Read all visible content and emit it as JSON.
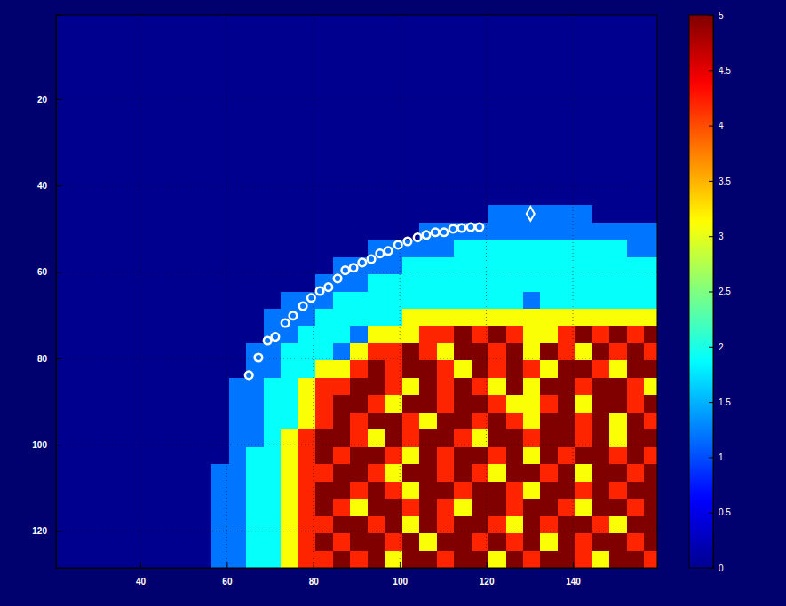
{
  "chart_data": {
    "type": "heatmap",
    "xlim": [
      20.5,
      159.5
    ],
    "ylim": [
      0.5,
      128.5
    ],
    "xticks": [
      40,
      60,
      80,
      100,
      120,
      140
    ],
    "yticks": [
      20,
      40,
      60,
      80,
      100,
      120
    ],
    "grid": true,
    "color_range": [
      0,
      5
    ],
    "color_ticks": [
      0,
      0.5,
      1,
      1.5,
      2,
      2.5,
      3,
      3.5,
      4,
      4.5,
      5
    ],
    "x": [
      22.5,
      26.5,
      30.5,
      34.5,
      38.5,
      42.5,
      46.5,
      50.5,
      54.5,
      58.5,
      62.5,
      66.5,
      70.5,
      74.5,
      78.5,
      82.5,
      86.5,
      90.5,
      94.5,
      98.5,
      102.5,
      106.5,
      110.5,
      114.5,
      118.5,
      122.5,
      126.5,
      130.5,
      134.5,
      138.5,
      142.5,
      146.5,
      150.5,
      154.5,
      158.5
    ],
    "y": [
      2.5,
      6.5,
      10.5,
      14.5,
      18.5,
      22.5,
      26.5,
      30.5,
      34.5,
      38.5,
      42.5,
      46.5,
      50.5,
      54.5,
      58.5,
      62.5,
      66.5,
      70.5,
      74.5,
      78.5,
      82.5,
      86.5,
      90.5,
      94.5,
      98.5,
      102.5,
      106.5,
      110.5,
      114.5,
      118.5,
      122.5,
      126.5
    ],
    "cells": [
      [
        0,
        0,
        0,
        0,
        0,
        0,
        0,
        0,
        0,
        0,
        0,
        0,
        0,
        0,
        0,
        0,
        0,
        0,
        0,
        0,
        0,
        0,
        0,
        0,
        0,
        0,
        0,
        0,
        0,
        0,
        0,
        0,
        0,
        0,
        0
      ],
      [
        0,
        0,
        0,
        0,
        0,
        0,
        0,
        0,
        0,
        0,
        0,
        0,
        0,
        0,
        0,
        0,
        0,
        0,
        0,
        0,
        0,
        0,
        0,
        0,
        0,
        0,
        0,
        0,
        0,
        0,
        0,
        0,
        0,
        0,
        0
      ],
      [
        0,
        0,
        0,
        0,
        0,
        0,
        0,
        0,
        0,
        0,
        0,
        0,
        0,
        0,
        0,
        0,
        0,
        0,
        0,
        0,
        0,
        0,
        0,
        0,
        0,
        0,
        0,
        0,
        0,
        0,
        0,
        0,
        0,
        0,
        0
      ],
      [
        0,
        0,
        0,
        0,
        0,
        0,
        0,
        0,
        0,
        0,
        0,
        0,
        0,
        0,
        0,
        0,
        0,
        0,
        0,
        0,
        0,
        0,
        0,
        0,
        0,
        0,
        0,
        0,
        0,
        0,
        0,
        0,
        0,
        0,
        0
      ],
      [
        0,
        0,
        0,
        0,
        0,
        0,
        0,
        0,
        0,
        0,
        0,
        0,
        0,
        0,
        0,
        0,
        0,
        0,
        0,
        0,
        0,
        0,
        0,
        0,
        0,
        0,
        0,
        0,
        0,
        0,
        0,
        0,
        0,
        0,
        0
      ],
      [
        0,
        0,
        0,
        0,
        0,
        0,
        0,
        0,
        0,
        0,
        0,
        0,
        0,
        0,
        0,
        0,
        0,
        0,
        0,
        0,
        0,
        0,
        0,
        0,
        0,
        0,
        0,
        0,
        0,
        0,
        0,
        0,
        0,
        0,
        0
      ],
      [
        0,
        0,
        0,
        0,
        0,
        0,
        0,
        0,
        0,
        0,
        0,
        0,
        0,
        0,
        0,
        0,
        0,
        0,
        0,
        0,
        0,
        0,
        0,
        0,
        0,
        0,
        0,
        0,
        0,
        0,
        0,
        0,
        0,
        0,
        0
      ],
      [
        0,
        0,
        0,
        0,
        0,
        0,
        0,
        0,
        0,
        0,
        0,
        0,
        0,
        0,
        0,
        0,
        0,
        0,
        0,
        0,
        0,
        0,
        0,
        0,
        0,
        0,
        0,
        0,
        0,
        0,
        0,
        0,
        0,
        0,
        0
      ],
      [
        0,
        0,
        0,
        0,
        0,
        0,
        0,
        0,
        0,
        0,
        0,
        0,
        0,
        0,
        0,
        0,
        0,
        0,
        0,
        0,
        0,
        0,
        0,
        0,
        0,
        0,
        0,
        0,
        0,
        0,
        0,
        0,
        0,
        0,
        0
      ],
      [
        0,
        0,
        0,
        0,
        0,
        0,
        0,
        0,
        0,
        0,
        0,
        0,
        0,
        0,
        0,
        0,
        0,
        0,
        0,
        0,
        0,
        0,
        0,
        0,
        0,
        0,
        0,
        0,
        0,
        0,
        0,
        0,
        0,
        0,
        0
      ],
      [
        0,
        0,
        0,
        0,
        0,
        0,
        0,
        0,
        0,
        0,
        0,
        0,
        0,
        0,
        0,
        0,
        0,
        0,
        0,
        0,
        0,
        0,
        0,
        0,
        0,
        0,
        0,
        0,
        0,
        0,
        0,
        0,
        0,
        0,
        0
      ],
      [
        0,
        0,
        0,
        0,
        0,
        0,
        0,
        0,
        0,
        0,
        0,
        0,
        0,
        0,
        0,
        0,
        0,
        0,
        0,
        0,
        0,
        0,
        0,
        0,
        0,
        1.2,
        1.2,
        1.2,
        1.2,
        1.2,
        1.2,
        0,
        0,
        0,
        0
      ],
      [
        0,
        0,
        0,
        0,
        0,
        0,
        0,
        0,
        0,
        0,
        0,
        0,
        0,
        0,
        0,
        0,
        0,
        0,
        0,
        0,
        0,
        1.2,
        1.2,
        1.2,
        1.2,
        1.2,
        1.2,
        1.2,
        1.2,
        1.2,
        1.2,
        1.2,
        1.2,
        1.2,
        1.2
      ],
      [
        0,
        0,
        0,
        0,
        0,
        0,
        0,
        0,
        0,
        0,
        0,
        0,
        0,
        0,
        0,
        0,
        0,
        0,
        1.2,
        1.2,
        1.2,
        1.2,
        1.2,
        1.9,
        1.9,
        1.9,
        1.9,
        1.9,
        1.9,
        1.9,
        1.9,
        1.9,
        1.9,
        1.2,
        1.2
      ],
      [
        0,
        0,
        0,
        0,
        0,
        0,
        0,
        0,
        0,
        0,
        0,
        0,
        0,
        0,
        0,
        0,
        1.2,
        1.2,
        1.2,
        1.2,
        1.9,
        1.9,
        1.9,
        1.9,
        1.9,
        1.9,
        1.9,
        1.9,
        1.9,
        1.9,
        1.9,
        1.9,
        1.9,
        1.9,
        1.9
      ],
      [
        0,
        0,
        0,
        0,
        0,
        0,
        0,
        0,
        0,
        0,
        0,
        0,
        0,
        0,
        0,
        1.2,
        1.2,
        1.2,
        1.9,
        1.9,
        1.9,
        1.9,
        1.9,
        1.9,
        1.9,
        1.9,
        1.9,
        1.9,
        1.9,
        1.9,
        1.9,
        1.9,
        1.9,
        1.9,
        1.9
      ],
      [
        0,
        0,
        0,
        0,
        0,
        0,
        0,
        0,
        0,
        0,
        0,
        0,
        0,
        1.2,
        1.2,
        1.2,
        1.9,
        1.9,
        1.9,
        1.9,
        1.9,
        1.9,
        1.9,
        1.9,
        1.9,
        1.9,
        1.9,
        1.2,
        1.9,
        1.9,
        1.9,
        1.9,
        1.9,
        1.9,
        1.9
      ],
      [
        0,
        0,
        0,
        0,
        0,
        0,
        0,
        0,
        0,
        0,
        0,
        0,
        1.2,
        1.2,
        1.2,
        1.9,
        1.9,
        1.9,
        1.9,
        1.9,
        3.1,
        3.1,
        3.1,
        3.1,
        3.1,
        3.1,
        3.1,
        3.1,
        3.1,
        3.1,
        3.1,
        3.1,
        3.1,
        3.1,
        3.1
      ],
      [
        0,
        0,
        0,
        0,
        0,
        0,
        0,
        0,
        0,
        0,
        0,
        0,
        1.2,
        1.2,
        1.9,
        1.9,
        1.9,
        1.2,
        3.1,
        3.1,
        3.1,
        4.2,
        4.2,
        5,
        4.2,
        5,
        4.2,
        3.1,
        3.1,
        4.2,
        5,
        4.2,
        5,
        4.2,
        5
      ],
      [
        0,
        0,
        0,
        0,
        0,
        0,
        0,
        0,
        0,
        0,
        0,
        1.2,
        1.2,
        1.9,
        1.9,
        1.9,
        1.2,
        3.1,
        4.2,
        4.2,
        5,
        4.2,
        3.1,
        5,
        5,
        4.2,
        5,
        3.1,
        5,
        4.2,
        3.1,
        5,
        4.2,
        5,
        4.2
      ],
      [
        0,
        0,
        0,
        0,
        0,
        0,
        0,
        0,
        0,
        0,
        0,
        1.2,
        1.2,
        1.9,
        1.9,
        3.1,
        3.1,
        4.2,
        5,
        4.2,
        5,
        5,
        4.2,
        3.1,
        5,
        4.2,
        5,
        4.2,
        3.1,
        5,
        5,
        4.2,
        3.1,
        5,
        5
      ],
      [
        0,
        0,
        0,
        0,
        0,
        0,
        0,
        0,
        0,
        0,
        1.2,
        1.2,
        1.9,
        1.9,
        3.1,
        4.2,
        4.2,
        5,
        5,
        4.2,
        3.1,
        5,
        4.2,
        5,
        4.2,
        3.1,
        5,
        3.1,
        5,
        5,
        4.2,
        5,
        5,
        4.2,
        3.1
      ],
      [
        0,
        0,
        0,
        0,
        0,
        0,
        0,
        0,
        0,
        0,
        1.2,
        1.2,
        1.9,
        1.9,
        3.1,
        4.2,
        5,
        5,
        4.2,
        3.1,
        5,
        5,
        4.2,
        5,
        5,
        4.2,
        3.1,
        3.1,
        4.2,
        5,
        3.1,
        5,
        5,
        4.2,
        5
      ],
      [
        0,
        0,
        0,
        0,
        0,
        0,
        0,
        0,
        0,
        0,
        1.2,
        1.2,
        1.9,
        1.9,
        3.1,
        4.2,
        5,
        4.2,
        5,
        5,
        4.2,
        3.1,
        5,
        5,
        4.2,
        5,
        4.2,
        3.1,
        5,
        5,
        4.2,
        5,
        3.1,
        5,
        4.2
      ],
      [
        0,
        0,
        0,
        0,
        0,
        0,
        0,
        0,
        0,
        0,
        1.2,
        1.2,
        1.9,
        3.1,
        4.2,
        5,
        5,
        4.2,
        3.1,
        5,
        4.2,
        5,
        5,
        4.2,
        3.1,
        5,
        5,
        4.2,
        5,
        5,
        4.2,
        5,
        3.1,
        5,
        5
      ],
      [
        0,
        0,
        0,
        0,
        0,
        0,
        0,
        0,
        0,
        0,
        1.2,
        1.9,
        1.9,
        3.1,
        4.2,
        5,
        4.2,
        5,
        5,
        4.2,
        3.1,
        5,
        4.2,
        5,
        5,
        4.2,
        5,
        3.1,
        5,
        4.2,
        5,
        5,
        4.2,
        5,
        4.2
      ],
      [
        0,
        0,
        0,
        0,
        0,
        0,
        0,
        0,
        0,
        1.2,
        1.2,
        1.9,
        1.9,
        3.1,
        4.2,
        4.2,
        5,
        5,
        4.2,
        3.1,
        5,
        5,
        4.2,
        5,
        4.2,
        3.1,
        5,
        5,
        4.2,
        5,
        3.1,
        5,
        5,
        4.2,
        5
      ],
      [
        0,
        0,
        0,
        0,
        0,
        0,
        0,
        0,
        0,
        1.2,
        1.2,
        1.9,
        1.9,
        3.1,
        4.2,
        5,
        5,
        4.2,
        5,
        4.2,
        3.1,
        5,
        5,
        4.2,
        5,
        5,
        4.2,
        3.1,
        5,
        5,
        4.2,
        5,
        4.2,
        5,
        5
      ],
      [
        0,
        0,
        0,
        0,
        0,
        0,
        0,
        0,
        0,
        1.2,
        1.2,
        1.9,
        1.9,
        3.1,
        4.2,
        5,
        4.2,
        3.1,
        5,
        5,
        4.2,
        5,
        4.2,
        3.1,
        5,
        5,
        4.2,
        5,
        5,
        4.2,
        3.1,
        5,
        5,
        4.2,
        5
      ],
      [
        0,
        0,
        0,
        0,
        0,
        0,
        0,
        0,
        0,
        1.2,
        1.2,
        1.9,
        1.9,
        3.1,
        4.2,
        4.2,
        5,
        5,
        4.2,
        5,
        3.1,
        5,
        4.2,
        5,
        5,
        4.2,
        3.1,
        5,
        4.2,
        5,
        5,
        4.2,
        3.1,
        5,
        5
      ],
      [
        0,
        0,
        0,
        0,
        0,
        0,
        0,
        0,
        0,
        1.2,
        1.2,
        1.9,
        1.9,
        3.1,
        4.2,
        5,
        4.2,
        5,
        5,
        4.2,
        5,
        3.1,
        5,
        5,
        4.2,
        5,
        4.2,
        5,
        3.1,
        5,
        4.2,
        5,
        5,
        4.2,
        5
      ],
      [
        0,
        0,
        0,
        0,
        0,
        0,
        0,
        0,
        0,
        1.2,
        1.2,
        1.9,
        1.9,
        3.1,
        4.2,
        4.2,
        5,
        4.2,
        5,
        3.1,
        5,
        5,
        4.2,
        5,
        5,
        3.1,
        5,
        4.2,
        5,
        5,
        4.2,
        3.1,
        5,
        5,
        4.2
      ]
    ],
    "series": [
      {
        "type": "scatter",
        "marker": "circle",
        "color": "#ffffff",
        "x": [
          65.1,
          67.3,
          69.4,
          71.2,
          73.5,
          75.3,
          77.6,
          79.5,
          81.5,
          83.5,
          85.6,
          87.4,
          89.3,
          91.3,
          93.4,
          95.4,
          97.3,
          99.6,
          101.8,
          104.1,
          106.1,
          108.2,
          110.2,
          112.3,
          114.3,
          116.4,
          118.4
        ],
        "values": [
          83.9,
          79.8,
          75.9,
          75.0,
          71.8,
          70.1,
          67.9,
          66.0,
          64.4,
          63.5,
          61.5,
          59.6,
          59.0,
          57.8,
          57.0,
          55.7,
          55.1,
          53.7,
          52.9,
          52.0,
          51.4,
          50.8,
          50.8,
          50.0,
          49.8,
          49.6,
          49.6
        ]
      },
      {
        "type": "scatter",
        "marker": "diamond",
        "color": "#ffffff",
        "x": [
          130.2
        ],
        "values": [
          46.5
        ]
      }
    ]
  }
}
